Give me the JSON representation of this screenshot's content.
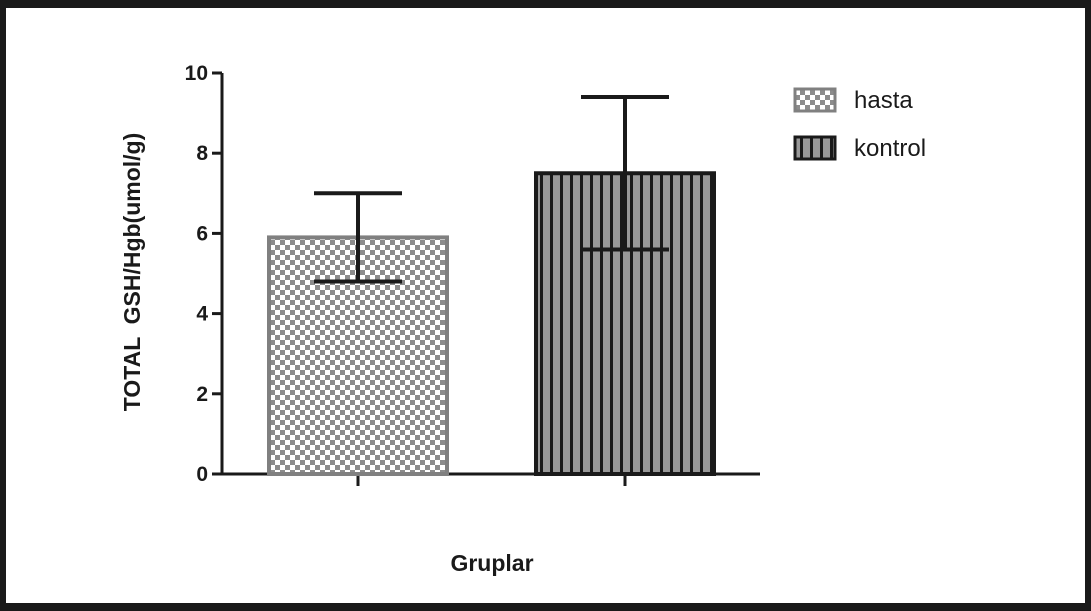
{
  "chart_data": {
    "type": "bar",
    "categories": [
      "hasta",
      "kontrol"
    ],
    "values": [
      5.9,
      7.5
    ],
    "error_low": [
      4.8,
      5.6
    ],
    "error_high": [
      7.0,
      9.4
    ],
    "xlabel": "Gruplar",
    "ylabel": "TOTAL  GSH/Hgb(umol/g)",
    "ylim": [
      0,
      10
    ],
    "yticks": [
      "0",
      "2",
      "4",
      "6",
      "8",
      "10"
    ],
    "grid": false,
    "legend": {
      "placement": "top-right",
      "entries": [
        {
          "label": "hasta",
          "pattern": "checker"
        },
        {
          "label": "kontrol",
          "pattern": "vertical-stripes"
        }
      ]
    },
    "colors": {
      "hasta_border": "#808080",
      "hasta_fill_dark": "#8c8c8c",
      "kontrol_border": "#1a1a1a",
      "kontrol_fill_light": "#999999",
      "axis": "#1a1a1a"
    }
  }
}
